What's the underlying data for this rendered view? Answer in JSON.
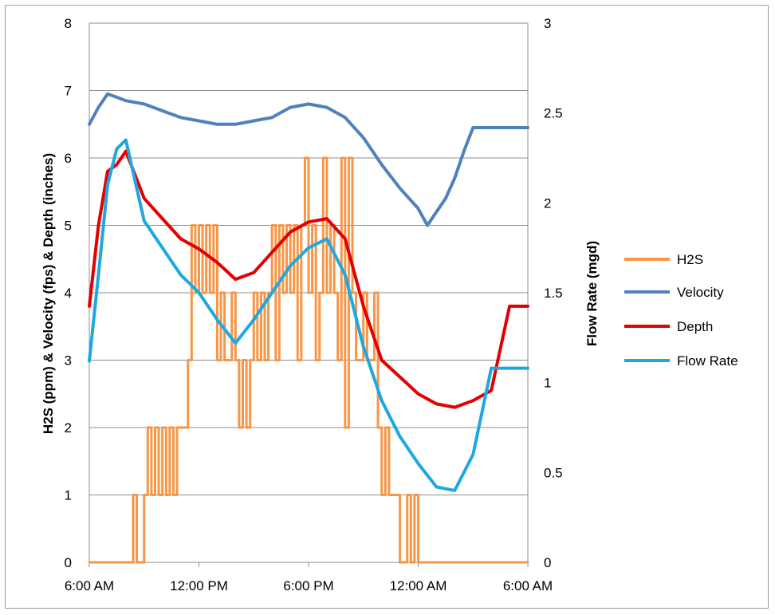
{
  "chart_data": {
    "type": "line",
    "title": "",
    "ylabel_left": "H2S (ppm) & Velocity (fps) & Depth (inches)",
    "ylabel_right": "Flow Rate (mgd)",
    "xlabel": "",
    "x_ticks": [
      "6:00 AM",
      "12:00 PM",
      "6:00 PM",
      "12:00 AM",
      "6:00 AM"
    ],
    "x_range_hours": [
      0,
      24
    ],
    "ylim_left": [
      0,
      8
    ],
    "y_ticks_left": [
      "0",
      "1",
      "2",
      "3",
      "4",
      "5",
      "6",
      "7",
      "8"
    ],
    "ylim_right": [
      0,
      3
    ],
    "y_ticks_right": [
      "0",
      "0.5",
      "1",
      "1.5",
      "2",
      "2.5",
      "3"
    ],
    "grid": "horizontal",
    "legend_position": "right",
    "series": [
      {
        "name": "H2S",
        "axis": "left",
        "color": "#F79646",
        "x": [
          0,
          2.2,
          2.4,
          2.6,
          3.0,
          3.2,
          3.4,
          3.6,
          3.8,
          4.0,
          4.2,
          4.4,
          4.6,
          4.8,
          5.0,
          5.2,
          5.4,
          5.6,
          5.8,
          6.0,
          6.2,
          6.4,
          6.6,
          6.8,
          7.0,
          7.2,
          7.4,
          7.6,
          7.8,
          8.0,
          8.2,
          8.4,
          8.6,
          8.8,
          9.0,
          9.2,
          9.4,
          9.6,
          9.8,
          10.0,
          10.2,
          10.4,
          10.6,
          10.8,
          11.0,
          11.2,
          11.4,
          11.6,
          11.8,
          12.0,
          12.2,
          12.4,
          12.6,
          12.8,
          13.0,
          13.2,
          13.4,
          13.6,
          13.8,
          14.0,
          14.2,
          14.4,
          14.6,
          14.8,
          15.0,
          15.2,
          15.4,
          15.6,
          15.8,
          16.0,
          16.2,
          16.4,
          16.6,
          16.8,
          17.0,
          17.2,
          17.4,
          17.6,
          17.8,
          18.0,
          18.2,
          18.4,
          18.6,
          18.8,
          19.0,
          19.2,
          19.4,
          19.6,
          19.8,
          20.0,
          20.2,
          20.4,
          20.6,
          20.8,
          21.0,
          21.2,
          21.4,
          21.6,
          21.8,
          22.0,
          22.2,
          22.4,
          22.6,
          22.8,
          23.0,
          23.2,
          23.4,
          23.6,
          24.0
        ],
        "values": [
          0,
          0,
          1,
          0,
          1,
          2,
          1,
          2,
          1,
          2,
          1,
          2,
          1,
          2,
          2,
          2,
          3,
          5,
          4,
          5,
          4,
          5,
          4,
          5,
          3,
          4,
          3,
          3,
          4,
          3,
          2,
          3,
          2,
          3,
          4,
          3,
          4,
          3,
          4,
          5,
          3,
          5,
          4,
          5,
          4,
          5,
          3,
          5,
          6,
          4,
          5,
          3,
          4,
          6,
          4,
          5,
          4,
          3,
          6,
          2,
          6,
          4,
          3,
          3,
          4,
          3,
          3,
          4,
          2,
          1,
          2,
          1,
          1,
          1,
          0,
          0,
          1,
          0,
          1,
          0,
          0,
          0,
          0,
          0,
          0,
          0,
          0,
          0,
          0,
          0,
          0,
          0,
          0,
          0,
          0,
          0,
          0,
          0,
          0,
          0,
          0,
          0,
          0,
          0,
          0,
          0,
          0,
          0,
          0
        ]
      },
      {
        "name": "Velocity",
        "axis": "left",
        "color": "#4F81BD",
        "x": [
          0,
          0.5,
          1,
          1.5,
          2,
          3,
          4,
          5,
          6,
          7,
          8,
          9,
          10,
          11,
          12,
          13,
          14,
          15,
          16,
          17,
          18,
          18.5,
          19,
          19.5,
          20,
          20.5,
          21,
          21.5,
          22,
          22.5,
          23,
          23.5,
          24
        ],
        "values": [
          6.5,
          6.75,
          6.95,
          6.9,
          6.85,
          6.8,
          6.7,
          6.6,
          6.55,
          6.5,
          6.5,
          6.55,
          6.6,
          6.75,
          6.8,
          6.75,
          6.6,
          6.3,
          5.9,
          5.55,
          5.25,
          5.0,
          5.2,
          5.4,
          5.7,
          6.1,
          6.45,
          6.45,
          6.45,
          6.45,
          6.45,
          6.45,
          6.45
        ]
      },
      {
        "name": "Depth",
        "axis": "left",
        "color": "#E30000",
        "x": [
          0,
          0.5,
          1,
          1.5,
          2,
          3,
          4,
          5,
          6,
          7,
          8,
          9,
          10,
          11,
          12,
          13,
          14,
          15,
          16,
          17,
          18,
          19,
          20,
          21,
          22,
          23,
          24
        ],
        "values": [
          3.8,
          5.0,
          5.8,
          5.9,
          6.1,
          5.4,
          5.1,
          4.8,
          4.65,
          4.45,
          4.2,
          4.3,
          4.6,
          4.9,
          5.05,
          5.1,
          4.8,
          3.8,
          3.0,
          2.75,
          2.5,
          2.35,
          2.3,
          2.4,
          2.55,
          3.8,
          3.8
        ]
      },
      {
        "name": "Flow Rate",
        "axis": "right",
        "color": "#1FA8E0",
        "x": [
          0,
          0.5,
          1,
          1.5,
          2,
          3,
          4,
          5,
          6,
          7,
          8,
          9,
          10,
          11,
          12,
          13,
          14,
          15,
          16,
          17,
          18,
          19,
          20,
          21,
          22,
          23,
          24
        ],
        "values": [
          1.12,
          1.6,
          2.1,
          2.3,
          2.35,
          1.9,
          1.75,
          1.6,
          1.5,
          1.35,
          1.22,
          1.35,
          1.5,
          1.65,
          1.75,
          1.8,
          1.6,
          1.2,
          0.9,
          0.7,
          0.55,
          0.42,
          0.4,
          0.6,
          1.08,
          1.08,
          1.08
        ]
      }
    ]
  }
}
